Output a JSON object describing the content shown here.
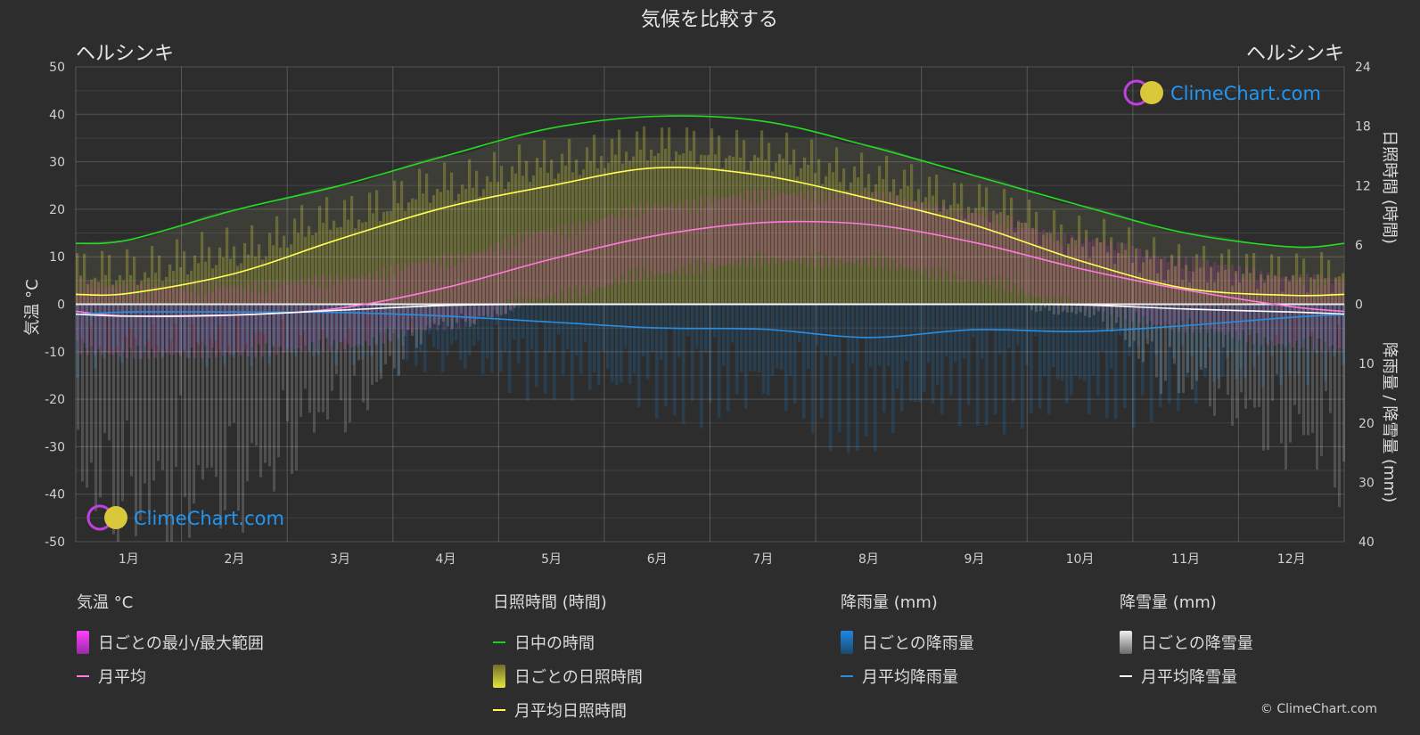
{
  "header": {
    "title": "気候を比較する",
    "city_left": "ヘルシンキ",
    "city_right": "ヘルシンキ"
  },
  "brand": {
    "name": "ClimeChart.com",
    "copyright": "© ClimeChart.com",
    "color": "#2196f3"
  },
  "legend": {
    "temperature": {
      "title": "気温 °C",
      "items": [
        "日ごとの最小/最大範囲",
        "月平均"
      ],
      "colors": [
        "#e040fb",
        "#ff7ae0"
      ]
    },
    "sunshine": {
      "title": "日照時間 (時間)",
      "items": [
        "日中の時間",
        "日ごとの日照時間",
        "月平均日照時間"
      ],
      "colors": [
        "#22cc22",
        "#d4d43a",
        "#ffff55"
      ]
    },
    "rain": {
      "title": "降雨量 (mm)",
      "items": [
        "日ごとの降雨量",
        "月平均降雨量"
      ],
      "colors": [
        "#1e88e5",
        "#2a8ee0"
      ]
    },
    "snow": {
      "title": "降雪量 (mm)",
      "items": [
        "日ごとの降雪量",
        "月平均降雪量"
      ],
      "colors": [
        "#e8e8e8",
        "#ffffff"
      ]
    }
  },
  "chart_data": {
    "type": "line",
    "title": "気候を比較する",
    "months": [
      "1月",
      "2月",
      "3月",
      "4月",
      "5月",
      "6月",
      "7月",
      "8月",
      "9月",
      "10月",
      "11月",
      "12月"
    ],
    "y_left": {
      "label": "気温 °C",
      "range": [
        -50,
        50
      ],
      "ticks": [
        50,
        40,
        30,
        20,
        10,
        0,
        -10,
        -20,
        -30,
        -40,
        -50
      ]
    },
    "y_right_top": {
      "label": "日照時間 (時間)",
      "range": [
        0,
        24
      ],
      "ticks": [
        24,
        18,
        12,
        6,
        0
      ]
    },
    "y_right_bottom": {
      "label": "降雨量 / 降雪量 (mm)",
      "range": [
        0,
        40
      ],
      "ticks": [
        0,
        10,
        20,
        30,
        40
      ]
    },
    "grid": true,
    "series": [
      {
        "name": "日中の時間",
        "axis": "sunshine",
        "values": [
          6.5,
          9.5,
          12.0,
          15.0,
          17.8,
          19.0,
          18.5,
          16.0,
          13.0,
          10.0,
          7.2,
          5.8
        ]
      },
      {
        "name": "月平均日照時間",
        "axis": "sunshine",
        "values": [
          1.1,
          3.1,
          6.6,
          9.8,
          12.0,
          13.8,
          13.0,
          10.7,
          8.0,
          4.4,
          1.6,
          0.9
        ]
      },
      {
        "name": "月平均",
        "axis": "temperature",
        "values": [
          -2.5,
          -2.3,
          -0.8,
          3.5,
          9.5,
          14.5,
          17.2,
          16.8,
          13.0,
          7.5,
          3.0,
          -0.5
        ]
      },
      {
        "name": "月平均降雨量",
        "axis": "precipitation",
        "values": [
          1.3,
          1.3,
          1.4,
          2.0,
          3.0,
          4.0,
          4.2,
          5.6,
          4.3,
          4.6,
          3.6,
          2.2
        ]
      },
      {
        "name": "月平均降雪量",
        "axis": "precipitation",
        "values": [
          2.0,
          1.8,
          1.0,
          0.2,
          0.0,
          0.0,
          0.0,
          0.0,
          0.0,
          0.1,
          0.8,
          1.3
        ]
      }
    ]
  }
}
